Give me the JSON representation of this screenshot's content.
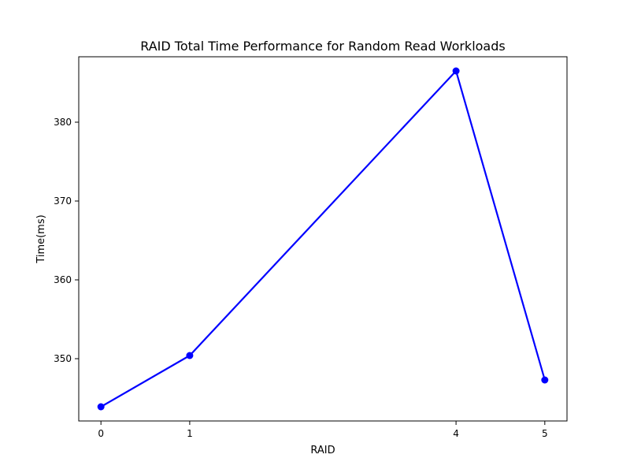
{
  "chart_data": {
    "type": "line",
    "title": "RAID Total Time Performance for Random Read Workloads",
    "xlabel": "RAID",
    "ylabel": "Time(ms)",
    "x": [
      0,
      1,
      4,
      5
    ],
    "xticks": [
      "0",
      "1",
      "4",
      "5"
    ],
    "xlim": [
      -0.25,
      5.25
    ],
    "yticks": [
      350,
      360,
      370,
      380
    ],
    "ylim": [
      342.1,
      388.3
    ],
    "series": [
      {
        "values": [
          343.9,
          350.4,
          386.5,
          347.3
        ],
        "color": "#0000ff"
      }
    ],
    "grid": false,
    "legend": "none"
  }
}
